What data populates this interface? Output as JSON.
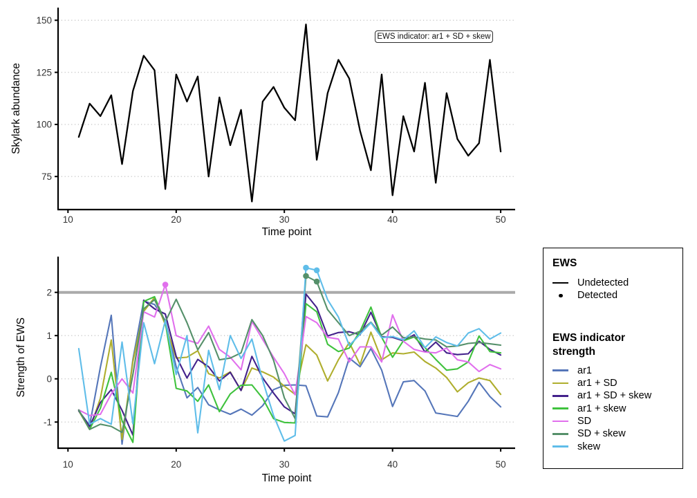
{
  "figure": {
    "top": {
      "ylabel": "Skylark abundance",
      "xlabel": "Time point",
      "annotation": "EWS indicator: ar1 + SD + skew"
    },
    "bottom": {
      "ylabel": "Strength of EWS",
      "xlabel": "Time point"
    }
  },
  "legend": {
    "ews_title": "EWS",
    "ews_items": [
      {
        "label": "Undetected",
        "glyph": "line"
      },
      {
        "label": "Detected",
        "glyph": "point"
      }
    ],
    "strength_title": "EWS indicator strength"
  },
  "colors": {
    "threshold": "#AAAAAA",
    "gridline": "#C6C6C6",
    "axis": "#000000",
    "tick_text": "#333333",
    "abundance_line": "#000000"
  },
  "chart_data": [
    {
      "type": "line",
      "panel": "top",
      "ylabel": "Skylark abundance",
      "xlabel": "Time point",
      "x": [
        11,
        12,
        13,
        14,
        15,
        16,
        17,
        18,
        19,
        20,
        21,
        22,
        23,
        24,
        25,
        26,
        27,
        28,
        29,
        30,
        31,
        32,
        33,
        34,
        35,
        36,
        37,
        38,
        39,
        40,
        41,
        42,
        43,
        44,
        45,
        46,
        47,
        48,
        49,
        50
      ],
      "series": [
        {
          "name": "Skylark abundance",
          "color": "#000000",
          "values": [
            94,
            110,
            104,
            114,
            81,
            116,
            133,
            126,
            69,
            124,
            111,
            123,
            75,
            113,
            90,
            107,
            63,
            111,
            118,
            108,
            102,
            148,
            83,
            115,
            131,
            122,
            97,
            78,
            124,
            66,
            104,
            87,
            120,
            72,
            115,
            93,
            85,
            91,
            131,
            87
          ]
        }
      ],
      "yticks": [
        75,
        100,
        125,
        150
      ],
      "xticks": [
        10,
        20,
        30,
        40,
        50
      ],
      "ylim": [
        60,
        152
      ],
      "xlim": [
        10,
        51.4
      ],
      "grid": "dotted-horizontal",
      "annotation": "EWS indicator: ar1 + SD + skew"
    },
    {
      "type": "line",
      "panel": "bottom",
      "ylabel": "Strength of EWS",
      "xlabel": "Time point",
      "threshold": 2,
      "x": [
        11,
        12,
        13,
        14,
        15,
        16,
        17,
        18,
        19,
        20,
        21,
        22,
        23,
        24,
        25,
        26,
        27,
        28,
        29,
        30,
        31,
        32,
        33,
        34,
        35,
        36,
        37,
        38,
        39,
        40,
        41,
        42,
        43,
        44,
        45,
        46,
        47,
        48,
        49,
        50
      ],
      "series": [
        {
          "name": "ar1",
          "color": "#5576B9",
          "values": [
            -0.74,
            -1.08,
            0.27,
            1.47,
            -1.51,
            0.45,
            1.8,
            1.72,
            1.35,
            0.28,
            -0.44,
            -0.2,
            -0.6,
            -0.72,
            -0.82,
            -0.7,
            -0.84,
            -0.62,
            -0.25,
            -0.15,
            -0.14,
            -0.16,
            -0.86,
            -0.88,
            -0.32,
            0.48,
            0.28,
            0.7,
            0.2,
            -0.64,
            -0.07,
            -0.04,
            -0.28,
            -0.79,
            -0.83,
            -0.87,
            -0.52,
            -0.08,
            -0.41,
            -0.65
          ]
        },
        {
          "name": "ar1 + SD",
          "color": "#AFAE2D",
          "values": [
            -0.74,
            -1.17,
            -0.45,
            0.9,
            -1.4,
            0.4,
            1.56,
            1.88,
            1.25,
            0.48,
            0.5,
            0.65,
            0.12,
            0.02,
            0.16,
            -0.27,
            0.25,
            0.16,
            0.04,
            -0.17,
            -0.36,
            0.79,
            0.55,
            -0.05,
            0.44,
            0.84,
            0.33,
            1.08,
            0.44,
            0.6,
            0.58,
            0.62,
            0.4,
            0.25,
            0.03,
            -0.3,
            -0.09,
            0.02,
            -0.04,
            -0.36
          ]
        },
        {
          "name": "ar1 + SD + skew",
          "color": "#43218B",
          "values": [
            -0.74,
            -1.1,
            -0.55,
            -0.25,
            -0.73,
            -1.3,
            1.82,
            1.62,
            1.5,
            0.52,
            0.02,
            0.45,
            0.28,
            -0.05,
            0.15,
            -0.27,
            0.52,
            0.02,
            -0.33,
            -0.65,
            -0.81,
            1.96,
            1.65,
            0.99,
            1.07,
            1.09,
            1.02,
            1.54,
            0.97,
            0.96,
            0.88,
            1.02,
            0.62,
            0.85,
            0.6,
            0.56,
            0.58,
            0.87,
            0.68,
            0.55
          ]
        },
        {
          "name": "ar1 + skew",
          "color": "#3FC23D",
          "values": [
            -0.72,
            -1.17,
            -0.68,
            0.15,
            -0.97,
            -1.47,
            1.79,
            1.9,
            1.3,
            -0.22,
            -0.28,
            -0.52,
            -0.14,
            -0.76,
            -0.35,
            -0.15,
            -0.14,
            -0.45,
            -0.92,
            -1.01,
            -1.02,
            1.74,
            1.55,
            0.8,
            0.63,
            0.71,
            1.1,
            1.66,
            0.96,
            0.5,
            0.88,
            0.97,
            0.72,
            0.45,
            0.2,
            0.23,
            0.39,
            0.99,
            0.63,
            0.6
          ]
        },
        {
          "name": "SD",
          "color": "#E16FED",
          "values": [
            -0.72,
            -0.85,
            -0.82,
            -0.35,
            0.0,
            -0.33,
            1.55,
            1.43,
            2.18,
            1.0,
            0.9,
            0.82,
            1.22,
            0.68,
            0.5,
            0.21,
            1.33,
            0.91,
            0.5,
            0.12,
            -0.37,
            1.44,
            1.3,
            0.96,
            0.92,
            0.39,
            0.74,
            0.74,
            0.39,
            1.48,
            0.87,
            0.68,
            0.62,
            0.6,
            0.71,
            0.44,
            0.39,
            0.17,
            0.33,
            0.23
          ]
        },
        {
          "name": "SD + skew",
          "color": "#55906A",
          "values": [
            -0.72,
            -1.17,
            -1.05,
            -1.1,
            -1.24,
            0.1,
            1.62,
            1.83,
            1.32,
            1.84,
            1.3,
            0.67,
            1.07,
            0.44,
            0.48,
            0.6,
            1.37,
            1.0,
            0.43,
            -0.44,
            -0.92,
            2.38,
            2.25,
            1.6,
            1.3,
            1.0,
            1.1,
            1.31,
            1.01,
            1.2,
            0.95,
            0.97,
            0.92,
            0.9,
            0.74,
            0.76,
            0.82,
            0.84,
            0.81,
            0.78
          ]
        },
        {
          "name": "skew",
          "color": "#5FBDE9",
          "values": [
            0.7,
            -1.05,
            -0.92,
            -1.05,
            0.85,
            -1.04,
            1.3,
            0.35,
            1.35,
            0.1,
            1.0,
            -1.25,
            0.66,
            -0.25,
            1.0,
            0.47,
            0.92,
            -0.04,
            -0.85,
            -1.44,
            -1.31,
            2.57,
            2.51,
            1.83,
            1.43,
            0.77,
            1.03,
            1.3,
            0.95,
            0.98,
            0.9,
            1.11,
            0.72,
            0.97,
            0.84,
            0.76,
            1.06,
            1.16,
            0.92,
            1.06
          ]
        }
      ],
      "detected": [
        {
          "series": "SD",
          "x": 19,
          "y": 2.18
        },
        {
          "series": "SD + skew",
          "x": 32,
          "y": 2.38
        },
        {
          "series": "SD + skew",
          "x": 33,
          "y": 2.25
        },
        {
          "series": "skew",
          "x": 32,
          "y": 2.57
        },
        {
          "series": "skew",
          "x": 33,
          "y": 2.51
        }
      ],
      "yticks": [
        -1,
        0,
        1,
        2
      ],
      "xticks": [
        10,
        20,
        30,
        40,
        50
      ],
      "ylim": [
        -1.6,
        2.75
      ],
      "xlim": [
        10,
        51.4
      ],
      "grid": "dotted-horizontal",
      "legend_position": "right"
    }
  ]
}
